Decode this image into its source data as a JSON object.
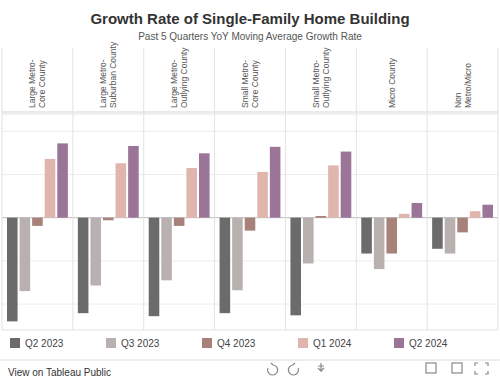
{
  "chart_data": {
    "type": "bar",
    "title": "Growth Rate of Single-Family Home Building",
    "subtitle": "Past 5 Quarters YoY Moving Average Growth Rate",
    "categories": [
      "Large Metro-Core County",
      "Large Metro-Suburban County",
      "Large Metro-Outlying County",
      "Small Metro-Core County",
      "Small Metro-Outlying County",
      "Micro County",
      "Non Metro/Micro"
    ],
    "series": [
      {
        "name": "Q2 2023",
        "color": "#6b6b6b",
        "values": [
          -24.0,
          -22.1,
          -22.8,
          -22.1,
          -22.6,
          -8.3,
          -7.2
        ]
      },
      {
        "name": "Q3 2023",
        "color": "#b9b1b0",
        "values": [
          -17.0,
          -15.7,
          -14.5,
          -16.8,
          -10.6,
          -11.9,
          -8.3
        ]
      },
      {
        "name": "Q4 2023",
        "color": "#a8817b",
        "values": [
          -1.9,
          -0.6,
          -1.9,
          -3.0,
          0.4,
          -8.3,
          -3.4
        ]
      },
      {
        "name": "Q1 2024",
        "color": "#e0b5ae",
        "values": [
          13.6,
          12.6,
          11.5,
          10.6,
          12.1,
          0.9,
          1.5
        ]
      },
      {
        "name": "Q2 2024",
        "color": "#9b7598",
        "values": [
          17.2,
          16.6,
          14.9,
          16.4,
          15.3,
          3.4,
          3.0
        ]
      }
    ],
    "ylim": [
      -26,
      24
    ],
    "yticks": [
      -20,
      -10,
      0,
      10,
      20
    ],
    "grid": true,
    "tick_labels": "x",
    "legend": "bottom"
  },
  "footer": "View on Tableau Public"
}
